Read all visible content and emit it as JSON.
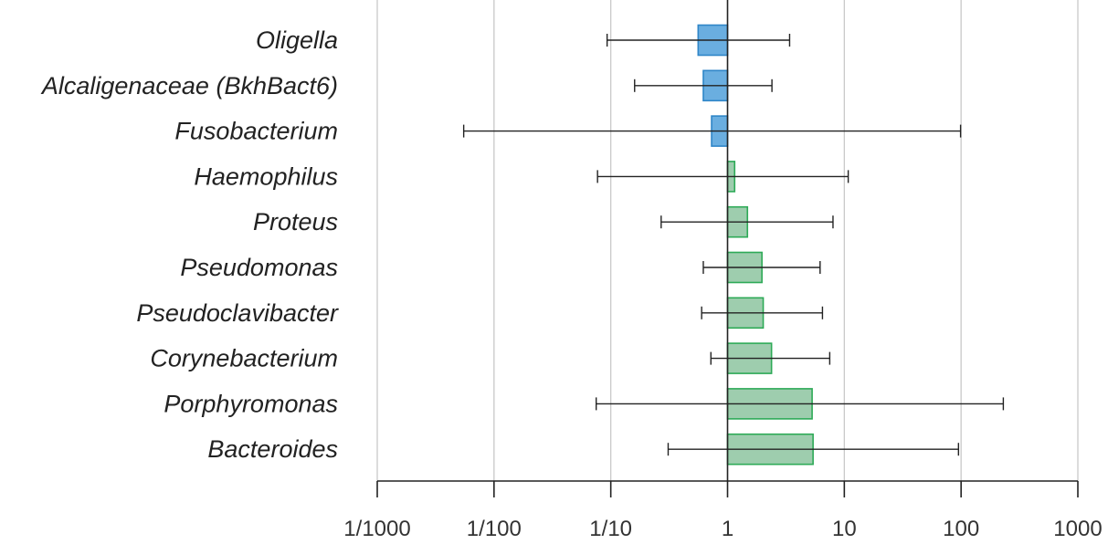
{
  "chart_data": {
    "type": "bar",
    "orientation": "horizontal",
    "x_scale": "log",
    "x_baseline": 1,
    "xlim": [
      0.001,
      1000
    ],
    "x_ticks": [
      0.001,
      0.01,
      0.1,
      1,
      10,
      100,
      1000
    ],
    "x_tick_labels": [
      "1/1000",
      "1/100",
      "1/10",
      "1",
      "10",
      "100",
      "1000"
    ],
    "grid": true,
    "colors": {
      "decreased_fill": "#6aaee0",
      "decreased_stroke": "#2f86c8",
      "increased_fill": "#9ecdae",
      "increased_stroke": "#2eaa57",
      "error_bar": "#222222"
    },
    "categories": [
      "Oligella",
      "Alcaligenaceae (BkhBact6)",
      "Fusobacterium",
      "Haemophilus",
      "Proteus",
      "Pseudomonas",
      "Pseudoclavibacter",
      "Corynebacterium",
      "Porphyromonas",
      "Bacteroides"
    ],
    "values": [
      0.56,
      0.62,
      0.73,
      1.15,
      1.48,
      1.97,
      2.02,
      2.38,
      5.3,
      5.4
    ],
    "ci_lower": [
      0.093,
      0.16,
      0.0055,
      0.077,
      0.27,
      0.62,
      0.6,
      0.72,
      0.075,
      0.31
    ],
    "ci_upper": [
      3.4,
      2.4,
      99,
      10.8,
      8.0,
      6.2,
      6.5,
      7.5,
      230,
      95
    ]
  }
}
